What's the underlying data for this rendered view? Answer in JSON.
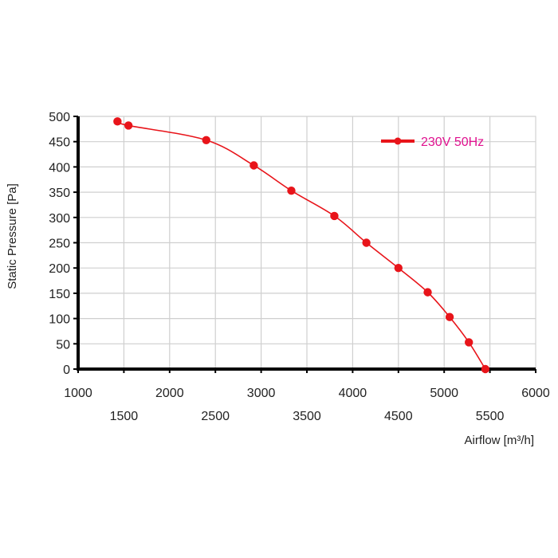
{
  "chart_data": {
    "type": "line",
    "title": "",
    "xlabel": "Airflow [m³/h]",
    "ylabel": "Static Pressure [Pa]",
    "xlim": [
      1000,
      6000
    ],
    "ylim": [
      0,
      500
    ],
    "x_ticks_top_row": [
      "1000",
      "2000",
      "3000",
      "4000",
      "5000",
      "6000"
    ],
    "x_ticks_bottom_row": [
      "1500",
      "2500",
      "3500",
      "4500",
      "5500"
    ],
    "y_ticks": [
      "0",
      "50",
      "100",
      "150",
      "200",
      "250",
      "300",
      "350",
      "400",
      "450",
      "500"
    ],
    "grid": true,
    "legend_position": "top-right",
    "series": [
      {
        "name": "230V 50Hz",
        "color": "#e8141a",
        "label_color": "#e0118f",
        "x": [
          1430,
          1550,
          2400,
          2920,
          3330,
          3800,
          4150,
          4500,
          4820,
          5060,
          5270,
          5450
        ],
        "y": [
          490,
          482,
          453,
          403,
          353,
          303,
          250,
          200,
          152,
          103,
          53,
          0
        ]
      }
    ]
  }
}
